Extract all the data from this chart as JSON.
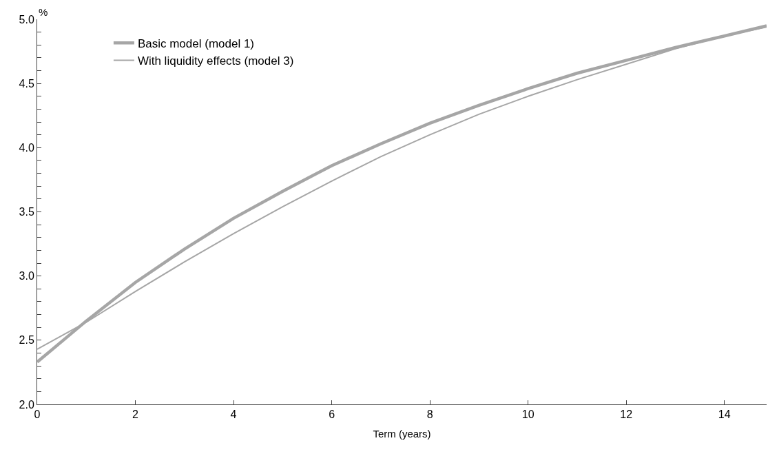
{
  "chart_data": {
    "type": "line",
    "ylabel": "%",
    "xlabel": "Term (years)",
    "x": [
      0,
      1,
      2,
      3,
      4,
      5,
      6,
      7,
      8,
      9,
      10,
      11,
      12,
      13,
      14,
      14.86
    ],
    "series": [
      {
        "name": "Basic model (model 1)",
        "color": "#a6a6a6",
        "values": [
          2.33,
          2.65,
          2.95,
          3.21,
          3.45,
          3.66,
          3.86,
          4.03,
          4.19,
          4.33,
          4.46,
          4.58,
          4.68,
          4.78,
          4.87,
          4.95
        ]
      },
      {
        "name": "With liquidity effects (model 3)",
        "color": "#a6a6a6",
        "values": [
          2.43,
          2.64,
          2.88,
          3.11,
          3.33,
          3.54,
          3.74,
          3.93,
          4.1,
          4.26,
          4.4,
          4.53,
          4.65,
          4.77,
          4.87,
          4.94
        ]
      }
    ],
    "xlim": [
      0,
      14.86
    ],
    "xticks": [
      0,
      2,
      4,
      6,
      8,
      10,
      12,
      14
    ],
    "ylim": [
      2.0,
      5.0
    ],
    "yticks": [
      "2.0",
      {
        "value": 2.1,
        "label": null
      },
      {
        "value": 2.2,
        "label": null
      },
      {
        "value": 2.3,
        "label": null
      },
      {
        "value": 2.4,
        "label": null
      },
      {
        "value": 2.5,
        "label": "2.5"
      },
      {
        "value": 2.6,
        "label": null
      },
      {
        "value": 2.7,
        "label": null
      },
      {
        "value": 2.8,
        "label": null
      },
      {
        "value": 2.9,
        "label": null
      },
      {
        "value": 3.0,
        "label": "3.0"
      },
      {
        "value": 3.1,
        "label": null
      },
      {
        "value": 3.2,
        "label": null
      },
      {
        "value": 3.3,
        "label": null
      },
      {
        "value": 3.4,
        "label": null
      },
      {
        "value": 3.5,
        "label": "3.5"
      },
      {
        "value": 3.6,
        "label": null
      },
      {
        "value": 3.7,
        "label": null
      },
      {
        "value": 3.8,
        "label": null
      },
      {
        "value": 3.9,
        "label": null
      },
      {
        "value": 4.0,
        "label": "4.0"
      },
      {
        "value": 4.1,
        "label": null
      },
      {
        "value": 4.2,
        "label": null
      },
      {
        "value": 4.3,
        "label": null
      },
      {
        "value": 4.4,
        "label": null
      },
      {
        "value": 4.5,
        "label": "4.5"
      },
      {
        "value": 4.6,
        "label": null
      },
      {
        "value": 4.7,
        "label": null
      },
      {
        "value": 4.8,
        "label": null
      },
      {
        "value": 4.9,
        "label": null
      },
      {
        "value": 5.0,
        "label": "5.0"
      }
    ],
    "legend": "top left",
    "marker": "none",
    "line_style": "solid"
  }
}
